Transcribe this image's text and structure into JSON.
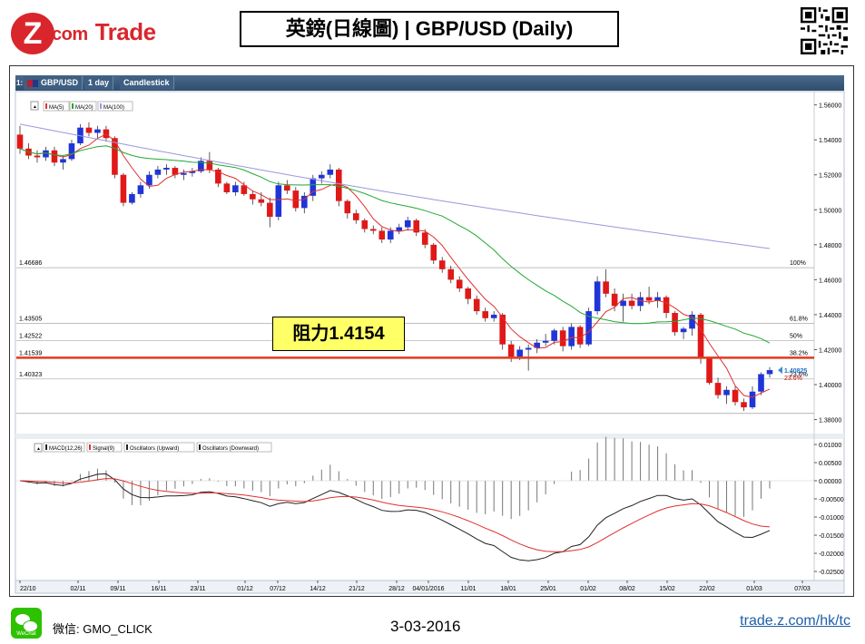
{
  "header": {
    "brand_mark": "Z",
    "brand_dot": ".com",
    "brand_trade": "Trade",
    "title": "英鎊(日線圖) | GBP/USD  (Daily)"
  },
  "toolbar": {
    "index": "1:",
    "symbol": "GBP/USD",
    "interval": "1 day",
    "chart_type": "Candlestick"
  },
  "legend_price": [
    "MA(5)",
    "MA(20)",
    "MA(100)"
  ],
  "legend_macd": [
    "MACD(12,26)",
    "Signal(9)",
    "Oscillators (Upward)",
    "Oscillators (Downward)"
  ],
  "annotation": {
    "resistance": "阻力1.4154",
    "current_price": "1.40825",
    "fib_23": "23.6%"
  },
  "footer": {
    "wechat_badge": "WeChat",
    "wechat": "微信: GMO_CLICK",
    "date": "3-03-2016",
    "url": "trade.z.com/hk/tc"
  },
  "colors": {
    "up": "#1f35d8",
    "down": "#e01818",
    "ma5": "#e03030",
    "ma20": "#22a832",
    "ma100": "#9999dd",
    "macd": "#222222",
    "signal": "#e03030",
    "resistance": "#e23a1e",
    "brand": "#d9262c"
  },
  "chart_data": [
    {
      "type": "candlestick",
      "x_ticks": [
        "22/10",
        "02/11",
        "09/11",
        "16/11",
        "23/11",
        "01/12",
        "07/12",
        "14/12",
        "21/12",
        "28/12",
        "04/01/2016",
        "11/01",
        "18/01",
        "25/01",
        "01/02",
        "08/02",
        "15/02",
        "22/02",
        "01/03",
        "07/03"
      ],
      "y_ticks": [
        "1.56000",
        "1.54000",
        "1.52000",
        "1.50000",
        "1.48000",
        "1.46000",
        "1.44000",
        "1.42000",
        "1.40000",
        "1.38000"
      ],
      "ylim": [
        1.372,
        1.565
      ],
      "fib_levels": [
        {
          "value": 1.46686,
          "label": "1.46686",
          "pct": "100%"
        },
        {
          "value": 1.43505,
          "label": "1.43505",
          "pct": "61.8%"
        },
        {
          "value": 1.42522,
          "label": "1.42522",
          "pct": "50%"
        },
        {
          "value": 1.41539,
          "label": "1.41539",
          "pct": "38.2%"
        },
        {
          "value": 1.40323,
          "label": "1.40323",
          "pct": "23.6%"
        }
      ],
      "low_line": 1.3835,
      "resistance": 1.4154,
      "current": 1.40825,
      "candles": [
        [
          1.543,
          1.548,
          1.532,
          1.535
        ],
        [
          1.535,
          1.538,
          1.529,
          1.531
        ],
        [
          1.531,
          1.534,
          1.527,
          1.53
        ],
        [
          1.53,
          1.536,
          1.528,
          1.534
        ],
        [
          1.534,
          1.536,
          1.525,
          1.527
        ],
        [
          1.527,
          1.531,
          1.523,
          1.529
        ],
        [
          1.529,
          1.54,
          1.528,
          1.538
        ],
        [
          1.538,
          1.549,
          1.537,
          1.547
        ],
        [
          1.547,
          1.55,
          1.542,
          1.544
        ],
        [
          1.544,
          1.548,
          1.541,
          1.546
        ],
        [
          1.546,
          1.548,
          1.539,
          1.541
        ],
        [
          1.541,
          1.542,
          1.518,
          1.52
        ],
        [
          1.52,
          1.521,
          1.502,
          1.504
        ],
        [
          1.504,
          1.51,
          1.503,
          1.509
        ],
        [
          1.509,
          1.516,
          1.507,
          1.514
        ],
        [
          1.514,
          1.522,
          1.512,
          1.52
        ],
        [
          1.52,
          1.525,
          1.518,
          1.523
        ],
        [
          1.523,
          1.526,
          1.52,
          1.524
        ],
        [
          1.524,
          1.525,
          1.518,
          1.52
        ],
        [
          1.52,
          1.523,
          1.517,
          1.521
        ],
        [
          1.521,
          1.524,
          1.519,
          1.522
        ],
        [
          1.522,
          1.53,
          1.521,
          1.528
        ],
        [
          1.528,
          1.533,
          1.521,
          1.523
        ],
        [
          1.523,
          1.524,
          1.513,
          1.515
        ],
        [
          1.515,
          1.516,
          1.509,
          1.51
        ],
        [
          1.51,
          1.516,
          1.508,
          1.514
        ],
        [
          1.514,
          1.516,
          1.508,
          1.509
        ],
        [
          1.509,
          1.511,
          1.503,
          1.506
        ],
        [
          1.506,
          1.51,
          1.502,
          1.504
        ],
        [
          1.504,
          1.507,
          1.49,
          1.496
        ],
        [
          1.496,
          1.516,
          1.494,
          1.514
        ],
        [
          1.514,
          1.517,
          1.509,
          1.511
        ],
        [
          1.511,
          1.513,
          1.499,
          1.501
        ],
        [
          1.501,
          1.51,
          1.498,
          1.508
        ],
        [
          1.508,
          1.52,
          1.505,
          1.518
        ],
        [
          1.518,
          1.522,
          1.515,
          1.52
        ],
        [
          1.52,
          1.526,
          1.518,
          1.523
        ],
        [
          1.523,
          1.524,
          1.502,
          1.505
        ],
        [
          1.505,
          1.506,
          1.495,
          1.498
        ],
        [
          1.498,
          1.5,
          1.492,
          1.494
        ],
        [
          1.494,
          1.495,
          1.487,
          1.489
        ],
        [
          1.489,
          1.491,
          1.486,
          1.488
        ],
        [
          1.488,
          1.49,
          1.481,
          1.483
        ],
        [
          1.483,
          1.49,
          1.481,
          1.488
        ],
        [
          1.488,
          1.492,
          1.486,
          1.49
        ],
        [
          1.49,
          1.496,
          1.488,
          1.494
        ],
        [
          1.494,
          1.495,
          1.485,
          1.487
        ],
        [
          1.487,
          1.489,
          1.478,
          1.48
        ],
        [
          1.48,
          1.481,
          1.469,
          1.471
        ],
        [
          1.471,
          1.473,
          1.464,
          1.466
        ],
        [
          1.466,
          1.468,
          1.458,
          1.46
        ],
        [
          1.46,
          1.462,
          1.453,
          1.455
        ],
        [
          1.455,
          1.456,
          1.446,
          1.449
        ],
        [
          1.449,
          1.451,
          1.44,
          1.442
        ],
        [
          1.442,
          1.444,
          1.436,
          1.438
        ],
        [
          1.438,
          1.442,
          1.436,
          1.44
        ],
        [
          1.44,
          1.441,
          1.42,
          1.423
        ],
        [
          1.423,
          1.425,
          1.413,
          1.416
        ],
        [
          1.416,
          1.422,
          1.414,
          1.42
        ],
        [
          1.42,
          1.423,
          1.408,
          1.421
        ],
        [
          1.421,
          1.426,
          1.418,
          1.424
        ],
        [
          1.424,
          1.429,
          1.422,
          1.425
        ],
        [
          1.425,
          1.432,
          1.423,
          1.431
        ],
        [
          1.431,
          1.433,
          1.419,
          1.422
        ],
        [
          1.422,
          1.435,
          1.42,
          1.433
        ],
        [
          1.433,
          1.434,
          1.421,
          1.423
        ],
        [
          1.423,
          1.444,
          1.422,
          1.442
        ],
        [
          1.442,
          1.462,
          1.44,
          1.459
        ],
        [
          1.459,
          1.466,
          1.45,
          1.452
        ],
        [
          1.452,
          1.455,
          1.442,
          1.445
        ],
        [
          1.445,
          1.452,
          1.436,
          1.448
        ],
        [
          1.448,
          1.452,
          1.443,
          1.445
        ],
        [
          1.445,
          1.453,
          1.442,
          1.45
        ],
        [
          1.45,
          1.456,
          1.446,
          1.448
        ],
        [
          1.448,
          1.453,
          1.444,
          1.45
        ],
        [
          1.45,
          1.451,
          1.438,
          1.441
        ],
        [
          1.441,
          1.442,
          1.428,
          1.43
        ],
        [
          1.43,
          1.433,
          1.426,
          1.432
        ],
        [
          1.432,
          1.442,
          1.428,
          1.44
        ],
        [
          1.44,
          1.441,
          1.412,
          1.415
        ],
        [
          1.415,
          1.416,
          1.4,
          1.401
        ],
        [
          1.401,
          1.404,
          1.392,
          1.394
        ],
        [
          1.394,
          1.399,
          1.389,
          1.397
        ],
        [
          1.397,
          1.399,
          1.388,
          1.39
        ],
        [
          1.39,
          1.392,
          1.385,
          1.387
        ],
        [
          1.387,
          1.399,
          1.386,
          1.396
        ],
        [
          1.396,
          1.407,
          1.394,
          1.406
        ],
        [
          1.406,
          1.41,
          1.404,
          1.4083
        ]
      ]
    },
    {
      "type": "line",
      "title": "MACD",
      "y_ticks": [
        "0.01000",
        "0.00500",
        "0.00000",
        "-0.00500",
        "-0.01000",
        "-0.01500",
        "-0.02000",
        "-0.02500"
      ],
      "ylim": [
        -0.0275,
        0.0115
      ]
    }
  ]
}
